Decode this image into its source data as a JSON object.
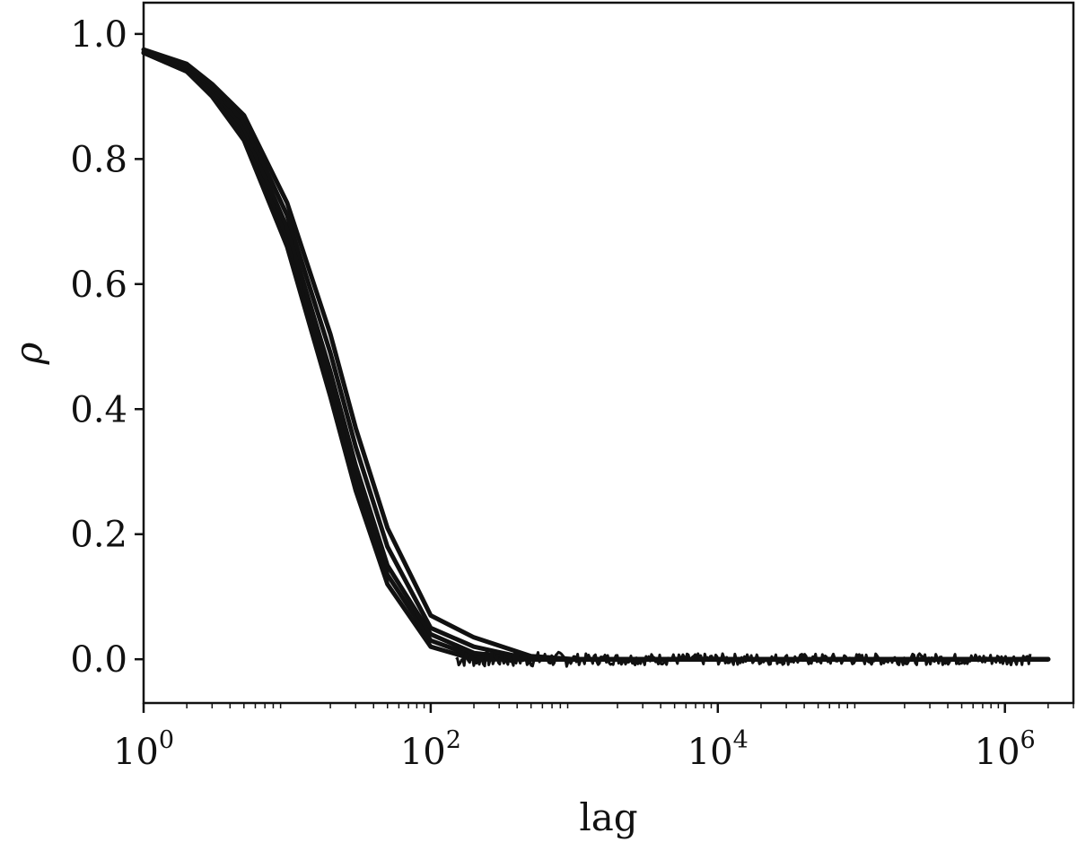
{
  "chart_data": {
    "type": "line",
    "title": "",
    "xlabel": "lag",
    "ylabel": "ρ",
    "x_scale": "log",
    "xlim": [
      1,
      3000000
    ],
    "ylim": [
      -0.07,
      1.05
    ],
    "x_ticks": [
      {
        "value": 1,
        "base": "10",
        "exp": "0"
      },
      {
        "value": 100,
        "base": "10",
        "exp": "2"
      },
      {
        "value": 10000,
        "base": "10",
        "exp": "4"
      },
      {
        "value": 1000000,
        "base": "10",
        "exp": "6"
      }
    ],
    "y_ticks": [
      0.0,
      0.2,
      0.4,
      0.6,
      0.8,
      1.0
    ],
    "y_tick_labels": [
      "0.0",
      "0.2",
      "0.4",
      "0.6",
      "0.8",
      "1.0"
    ],
    "grid": false,
    "legend": "none",
    "line_color": "#111111",
    "x": [
      1,
      2,
      3,
      5,
      10,
      20,
      30,
      50,
      100,
      200,
      500,
      1000,
      10000,
      100000,
      1000000,
      2000000
    ],
    "series": [
      {
        "values": [
          0.97,
          0.94,
          0.9,
          0.83,
          0.66,
          0.42,
          0.27,
          0.12,
          0.02,
          0.0,
          0.0,
          0.0,
          0.0,
          0.0,
          0.0,
          0.0
        ]
      },
      {
        "values": [
          0.97,
          0.94,
          0.905,
          0.84,
          0.675,
          0.44,
          0.29,
          0.135,
          0.03,
          0.005,
          0.0,
          0.0,
          0.0,
          0.0,
          0.0,
          0.0
        ]
      },
      {
        "values": [
          0.97,
          0.945,
          0.91,
          0.85,
          0.69,
          0.46,
          0.31,
          0.15,
          0.04,
          0.01,
          0.0,
          0.0,
          0.0,
          0.0,
          0.0,
          0.0
        ]
      },
      {
        "values": [
          0.97,
          0.948,
          0.915,
          0.86,
          0.71,
          0.49,
          0.34,
          0.18,
          0.05,
          0.02,
          0.0,
          0.0,
          0.0,
          0.0,
          0.0,
          0.0
        ]
      },
      {
        "values": [
          0.975,
          0.952,
          0.92,
          0.87,
          0.73,
          0.52,
          0.37,
          0.21,
          0.07,
          0.035,
          0.005,
          0.0,
          0.0,
          0.0,
          0.0,
          0.0
        ]
      }
    ]
  }
}
